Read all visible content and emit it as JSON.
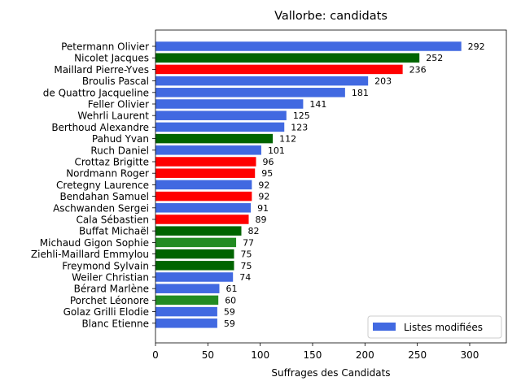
{
  "chart_data": {
    "type": "bar",
    "orientation": "horizontal",
    "title": "Vallorbe: candidats",
    "xlabel": "Suffrages des Candidats",
    "ylabel": "",
    "xlim": [
      0,
      335
    ],
    "xticks": [
      0,
      50,
      100,
      150,
      200,
      250,
      300
    ],
    "grid": false,
    "legend": {
      "position": "lower-right",
      "entries": [
        {
          "label": "Listes modifiées",
          "color": "#4169e1"
        }
      ]
    },
    "categories": [
      "Petermann Olivier",
      "Nicolet Jacques",
      "Maillard Pierre-Yves",
      "Broulis Pascal",
      "de Quattro Jacqueline",
      "Feller Olivier",
      "Wehrli Laurent",
      "Berthoud Alexandre",
      "Pahud Yvan",
      "Ruch Daniel",
      "Crottaz Brigitte",
      "Nordmann Roger",
      "Cretegny Laurence",
      "Bendahan Samuel",
      "Aschwanden Sergei",
      "Cala Sébastien",
      "Buffat Michaël",
      "Michaud Gigon Sophie",
      "Ziehli-Maillard Emmylou",
      "Freymond Sylvain",
      "Weiler Christian",
      "Bérard Marlène",
      "Porchet Léonore",
      "Golaz Grilli Elodie",
      "Blanc Etienne"
    ],
    "values": [
      292,
      252,
      236,
      203,
      181,
      141,
      125,
      123,
      112,
      101,
      96,
      95,
      92,
      92,
      91,
      89,
      82,
      77,
      75,
      75,
      74,
      61,
      60,
      59,
      59
    ],
    "colors": [
      "#4169e1",
      "#006400",
      "#ff0000",
      "#4169e1",
      "#4169e1",
      "#4169e1",
      "#4169e1",
      "#4169e1",
      "#006400",
      "#4169e1",
      "#ff0000",
      "#ff0000",
      "#4169e1",
      "#ff0000",
      "#4169e1",
      "#ff0000",
      "#006400",
      "#228b22",
      "#006400",
      "#006400",
      "#4169e1",
      "#4169e1",
      "#228b22",
      "#4169e1",
      "#4169e1"
    ]
  }
}
